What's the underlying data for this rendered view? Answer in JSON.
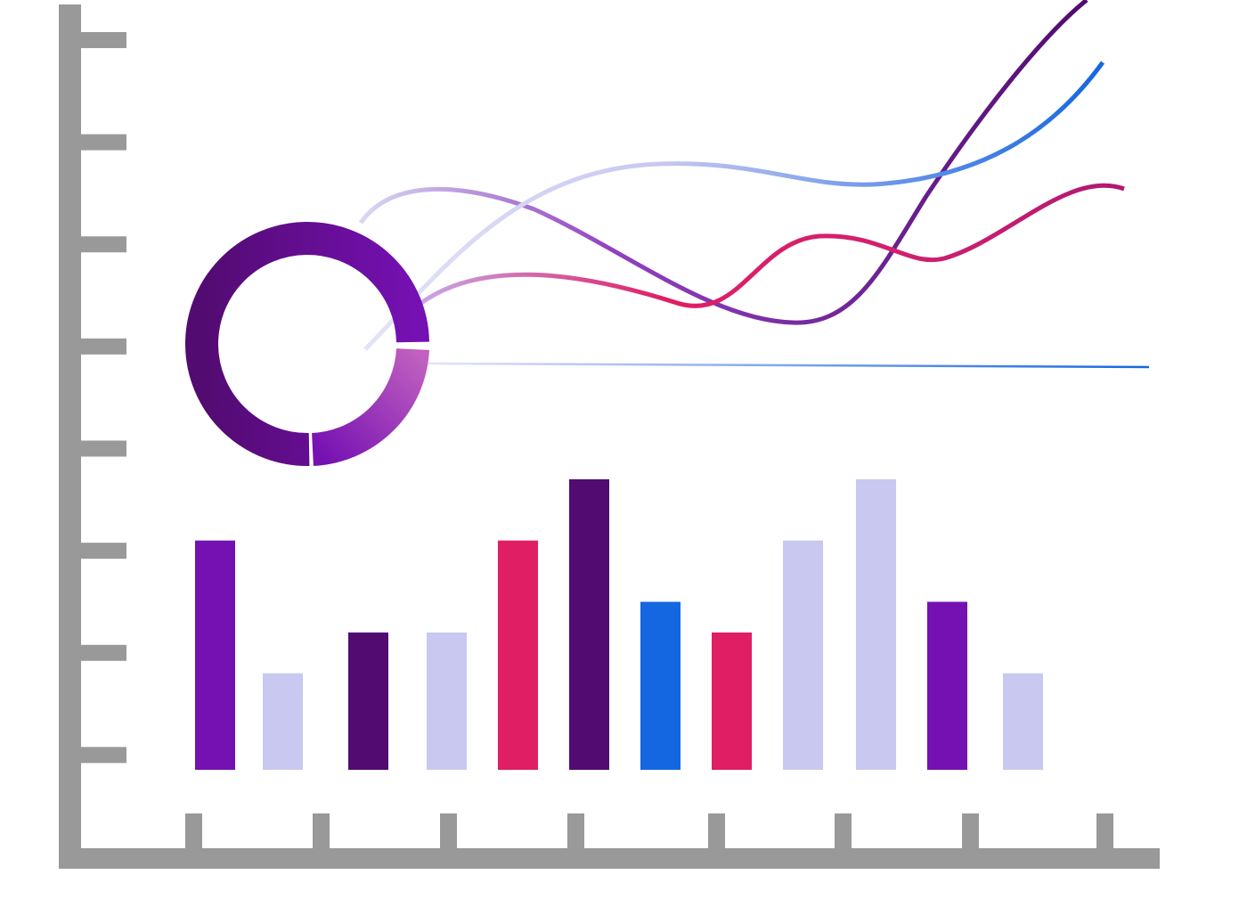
{
  "chart_data": {
    "type": "bar",
    "categories": [
      null,
      null,
      null,
      null,
      null,
      null,
      null,
      null,
      null,
      null,
      null,
      null
    ],
    "values": [
      3.1,
      1.8,
      2.2,
      2.2,
      3.1,
      3.7,
      2.5,
      2.2,
      3.1,
      3.7,
      2.5,
      1.8
    ],
    "colors": [
      "#7510b2",
      "#c8c8f0",
      "#520b70",
      "#c8c8f0",
      "#e01e64",
      "#520b70",
      "#1467e0",
      "#e01e64",
      "#c8c8f0",
      "#c8c8f0",
      "#7510b2",
      "#c8c8f0"
    ],
    "ylim": [
      0,
      8
    ],
    "yticks": [
      1,
      2,
      3,
      4,
      5,
      6,
      7,
      8
    ]
  }
}
